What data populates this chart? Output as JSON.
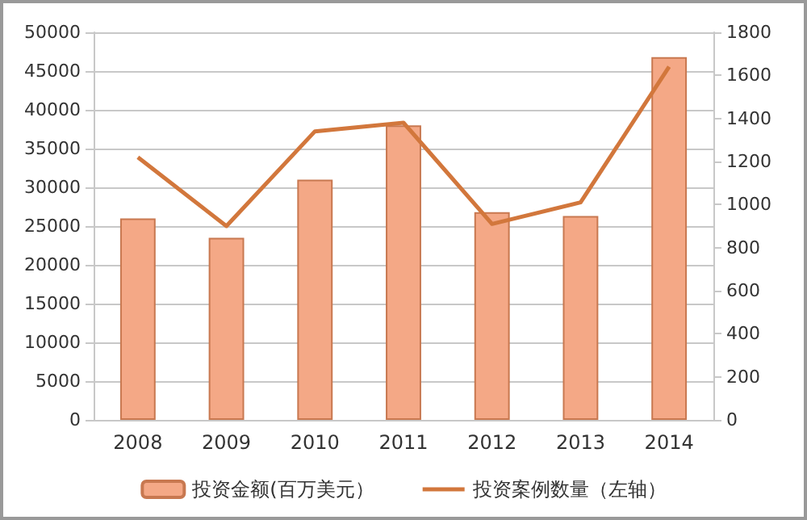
{
  "chart_data": {
    "type": "bar",
    "categories": [
      "2008",
      "2009",
      "2010",
      "2011",
      "2012",
      "2013",
      "2014"
    ],
    "series": [
      {
        "name": "投资金额(百万美元）",
        "color": "#f4a886",
        "values": [
          26000,
          23500,
          31000,
          38000,
          26800,
          26300,
          46800
        ]
      },
      {
        "name": "投资案例数量（左轴）",
        "type": "line",
        "axis": "y2",
        "color": "#d2773c",
        "values": [
          1220,
          900,
          1340,
          1380,
          910,
          1010,
          1640
        ]
      }
    ],
    "ylim": [
      0,
      50000
    ],
    "yticks": [
      0,
      5000,
      10000,
      15000,
      20000,
      25000,
      30000,
      35000,
      40000,
      45000,
      50000
    ],
    "y2lim": [
      0,
      1800
    ],
    "y2ticks": [
      0,
      200,
      400,
      600,
      800,
      1000,
      1200,
      1400,
      1600,
      1800
    ],
    "grid": "y",
    "legend": "bottom",
    "marker": "none"
  }
}
